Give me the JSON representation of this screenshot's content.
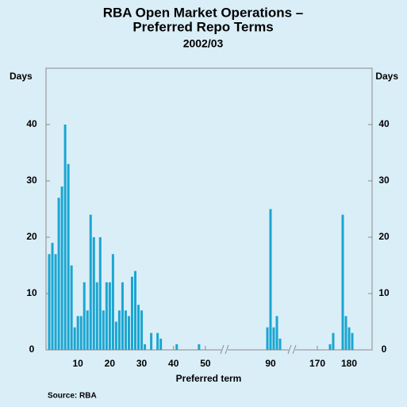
{
  "chart_data": {
    "type": "bar",
    "title": [
      "RBA Open Market Operations –",
      "Preferred Repo Terms"
    ],
    "subtitle": "2002/03",
    "y_label": "Days",
    "y2_label": "Days",
    "x_label": "Preferred term",
    "source": "Source: RBA",
    "color": "#1ba6d1",
    "x": [
      1,
      2,
      3,
      4,
      5,
      6,
      7,
      8,
      9,
      10,
      11,
      12,
      13,
      14,
      15,
      16,
      17,
      18,
      19,
      20,
      21,
      22,
      23,
      24,
      25,
      26,
      27,
      28,
      29,
      30,
      31,
      33,
      35,
      36,
      41,
      48,
      89,
      90,
      91,
      92,
      93,
      174,
      175,
      178,
      179,
      180,
      181
    ],
    "values": [
      17,
      19,
      17,
      27,
      29,
      40,
      33,
      15,
      4,
      6,
      6,
      12,
      7,
      24,
      20,
      12,
      20,
      7,
      12,
      12,
      17,
      5,
      7,
      12,
      7,
      6,
      13,
      14,
      8,
      7,
      1,
      3,
      3,
      2,
      1,
      1,
      4,
      25,
      4,
      6,
      2,
      1,
      3,
      24,
      6,
      4,
      3
    ],
    "xbreaks": [
      [
        0,
        56
      ],
      [
        75.5,
        96.75
      ],
      [
        162,
        187.25
      ]
    ],
    "xticks": [
      10,
      20,
      30,
      40,
      50,
      90,
      170,
      180
    ],
    "ylim": [
      0,
      50
    ],
    "yticks": [
      0,
      10,
      20,
      30,
      40
    ],
    "y2lim": [
      0,
      50
    ],
    "y2ticks": [
      0,
      10,
      20,
      30,
      40
    ]
  }
}
